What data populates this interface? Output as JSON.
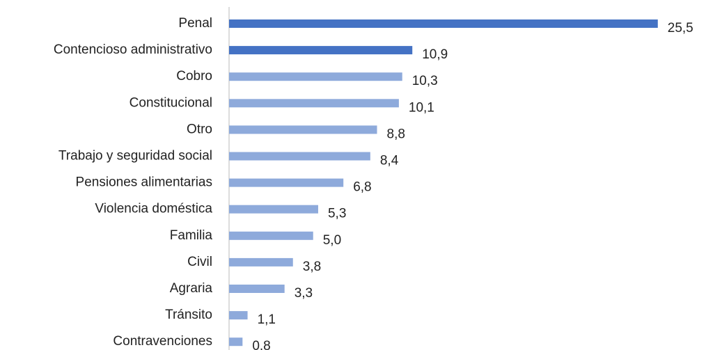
{
  "chart_data": {
    "type": "barh",
    "categories": [
      "Penal",
      "Contencioso administrativo",
      "Cobro",
      "Constitucional",
      "Otro",
      "Trabajo y seguridad social",
      "Pensiones alimentarias",
      "Violencia doméstica",
      "Familia",
      "Civil",
      "Agraria",
      "Tránsito",
      "Contravenciones"
    ],
    "values": [
      25.5,
      10.9,
      10.3,
      10.1,
      8.8,
      8.4,
      6.8,
      5.3,
      5.0,
      3.8,
      3.3,
      1.1,
      0.8
    ],
    "value_labels": [
      "25,5",
      "10,9",
      "10,3",
      "10,1",
      "8,8",
      "8,4",
      "6,8",
      "5,3",
      "5,0",
      "3,8",
      "3,3",
      "1,1",
      "0,8"
    ],
    "colors": [
      "#4472c4",
      "#4472c4",
      "#8eaadb",
      "#8eaadb",
      "#8eaadb",
      "#8eaadb",
      "#8eaadb",
      "#8eaadb",
      "#8eaadb",
      "#8eaadb",
      "#8eaadb",
      "#8eaadb",
      "#8eaadb"
    ],
    "xlim": [
      0,
      27
    ]
  }
}
